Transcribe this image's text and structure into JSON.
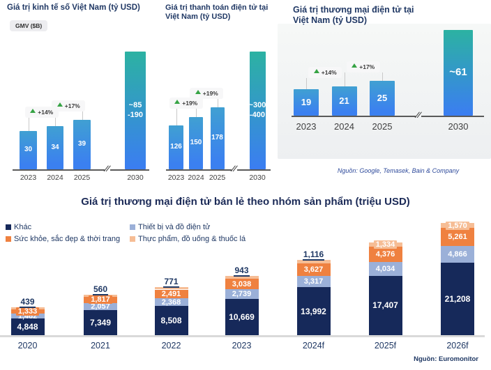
{
  "colors": {
    "title_navy": "#203864",
    "bar_blue_bottom": "#3b80f0",
    "bar_teal_top": "#2cb2a2",
    "growth_green": "#36a344",
    "callout_bg": "#f7f7f8",
    "card_bg": "#f2f4f5",
    "axis_gray": "#595959",
    "bottom_axis_gray": "#d9d9d9"
  },
  "chart_data": [
    {
      "id": "digital-economy-value",
      "type": "bar",
      "title": "Giá trị kinh tế số Việt Nam (tỷ USD)",
      "unit_badge": "GMV ($B)",
      "axis_break_before": "2030",
      "bars": [
        {
          "category": "2023",
          "value": 30,
          "label": "30"
        },
        {
          "category": "2024",
          "value": 34,
          "label": "34",
          "growth": "+14%"
        },
        {
          "category": "2025",
          "value": 39,
          "label": "39",
          "growth": "+17%"
        },
        {
          "category": "2030",
          "value_min": 85,
          "value_max": 190,
          "height_est": 92,
          "label": "~85\n-190",
          "projection": true
        }
      ]
    },
    {
      "id": "epayment-value",
      "type": "bar",
      "title": "Giá trị thanh toán điện tử tại Việt Nam (tỷ USD)",
      "axis_break_before": "2030",
      "bars": [
        {
          "category": "2023",
          "value": 126,
          "label": "126"
        },
        {
          "category": "2024",
          "value": 150,
          "label": "150",
          "growth": "+19%"
        },
        {
          "category": "2025",
          "value": 178,
          "label": "178",
          "growth": "+19%"
        },
        {
          "category": "2030",
          "value_min": 300,
          "value_max": 400,
          "height_est": 338,
          "label": "~300\n-400",
          "projection": true
        }
      ]
    },
    {
      "id": "ecommerce-value",
      "type": "bar",
      "title": "Giá trị thương mại điện tử tại Việt Nam (tỷ USD)",
      "axis_break_before": "2030",
      "source": "Nguồn: Google, Temasek, Bain & Company",
      "bars": [
        {
          "category": "2023",
          "value": 19,
          "label": "19"
        },
        {
          "category": "2024",
          "value": 21,
          "label": "21",
          "growth": "+14%"
        },
        {
          "category": "2025",
          "value": 25,
          "label": "25",
          "growth": "+17%"
        },
        {
          "category": "2030",
          "value_est": 61,
          "height_est": 61.5,
          "label": "~61",
          "projection": true
        }
      ]
    },
    {
      "id": "ecommerce-retail-by-category",
      "type": "stacked-bar",
      "title": "Giá trị thương mại điện tử bán lẻ theo nhóm sản phẩm (triệu USD)",
      "categories": [
        "2020",
        "2021",
        "2022",
        "2023",
        "2024f",
        "2025f",
        "2026f"
      ],
      "series": [
        {
          "name": "Khác",
          "color": "#16295a",
          "values": [
            4848,
            7349,
            8508,
            10669,
            13992,
            17407,
            21208
          ]
        },
        {
          "name": "Thiết bị và đồ điện tử",
          "color": "#9bb0d8",
          "values": [
            1462,
            2057,
            2368,
            2739,
            3317,
            4034,
            4866
          ]
        },
        {
          "name": "Sức khỏe, sắc đẹp & thời trang",
          "color": "#ef8140",
          "values": [
            1333,
            1817,
            2491,
            3038,
            3627,
            4376,
            5261
          ]
        },
        {
          "name": "Thực phẩm, đồ uống & thuốc lá",
          "color": "#f6bd95",
          "values": [
            439,
            560,
            771,
            943,
            1116,
            1334,
            1570
          ]
        }
      ],
      "legend_position": "top-left",
      "source": "Nguồn: Euromonitor"
    }
  ]
}
